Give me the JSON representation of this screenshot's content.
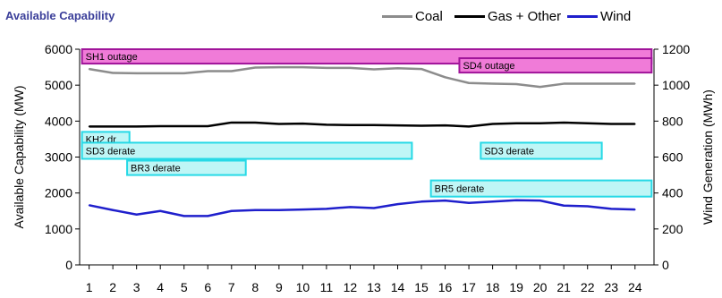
{
  "chart_data": {
    "type": "line",
    "title": "Available Capability",
    "xlabel": "",
    "ylabel": "Available Capability (MW)",
    "y2label": "Wind Generation (MWh)",
    "x": [
      1,
      2,
      3,
      4,
      5,
      6,
      7,
      8,
      9,
      10,
      11,
      12,
      13,
      14,
      15,
      16,
      17,
      18,
      19,
      20,
      21,
      22,
      23,
      24
    ],
    "ylim": [
      0,
      6000
    ],
    "y_ticks": [
      0,
      1000,
      2000,
      3000,
      4000,
      5000,
      6000
    ],
    "y2lim": [
      0,
      1200
    ],
    "y2_ticks": [
      0,
      200,
      400,
      600,
      800,
      1000,
      1200
    ],
    "legend_position": "top-right",
    "series": [
      {
        "name": "Coal",
        "axis": "left",
        "color": "#8c8c8c",
        "values": [
          5450,
          5340,
          5330,
          5330,
          5330,
          5390,
          5390,
          5490,
          5500,
          5500,
          5480,
          5480,
          5440,
          5470,
          5450,
          5220,
          5060,
          5040,
          5030,
          4950,
          5040,
          5040,
          5040,
          5040
        ]
      },
      {
        "name": "Gas + Other",
        "axis": "left",
        "color": "#000000",
        "values": [
          3850,
          3850,
          3850,
          3860,
          3860,
          3860,
          3960,
          3960,
          3920,
          3930,
          3900,
          3890,
          3890,
          3880,
          3870,
          3880,
          3850,
          3920,
          3940,
          3940,
          3960,
          3940,
          3920,
          3920
        ]
      },
      {
        "name": "Wind",
        "axis": "right",
        "color": "#1f1fcc",
        "values": [
          332,
          305,
          280,
          300,
          272,
          272,
          300,
          305,
          305,
          308,
          312,
          322,
          316,
          338,
          352,
          358,
          345,
          352,
          360,
          358,
          330,
          326,
          312,
          308
        ]
      }
    ],
    "annotations": [
      {
        "label": "SH1 outage",
        "kind": "outage",
        "start": 0.7,
        "end": 24.7,
        "y_top": 6000,
        "y_bottom": 5600
      },
      {
        "label": "SD4 outage",
        "kind": "outage",
        "start": 16.6,
        "end": 24.7,
        "y_top": 5750,
        "y_bottom": 5350
      },
      {
        "label": "KH2 dr",
        "kind": "derate",
        "start": 0.7,
        "end": 2.7,
        "y_top": 3700,
        "y_bottom": 3300
      },
      {
        "label": "SD3 derate",
        "kind": "derate",
        "start": 0.7,
        "end": 14.6,
        "y_top": 3400,
        "y_bottom": 2950
      },
      {
        "label": "SD3 derate",
        "kind": "derate",
        "start": 17.5,
        "end": 22.6,
        "y_top": 3400,
        "y_bottom": 2950
      },
      {
        "label": "BR3 derate",
        "kind": "derate",
        "start": 2.6,
        "end": 7.6,
        "y_top": 2900,
        "y_bottom": 2500
      },
      {
        "label": "BR5 derate",
        "kind": "derate",
        "start": 15.4,
        "end": 24.7,
        "y_top": 2350,
        "y_bottom": 1900
      }
    ],
    "colors": {
      "outage_fill": "#f07bd8",
      "outage_border": "#a0149a",
      "derate_fill": "#bff6f6",
      "derate_border": "#26d9e6",
      "title": "#3b3f9a"
    }
  }
}
